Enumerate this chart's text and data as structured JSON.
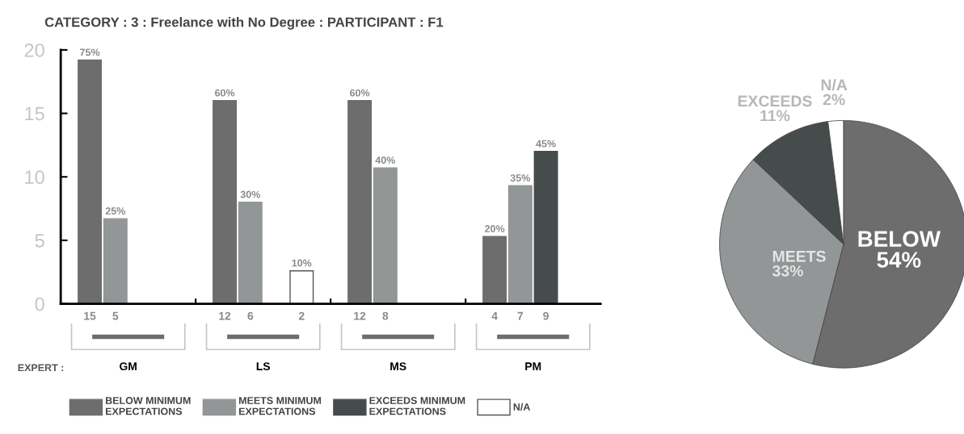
{
  "chart_data": [
    {
      "type": "bar",
      "title": "CATEGORY : 3 : Freelance with No Degree : PARTICIPANT : F1",
      "xlabel": "EXPERT :",
      "categories": [
        "GM",
        "LS",
        "MS",
        "PM"
      ],
      "series": [
        {
          "name": "BELOW MINIMUM\nEXPECTATIONS",
          "color": "#6d6d6d",
          "values": [
            19.2,
            16,
            16,
            5.3
          ]
        },
        {
          "name": "MEETS MINIMUM\nEXPECTATIONS",
          "color": "#929696",
          "values": [
            6.7,
            8,
            10.7,
            9.3
          ]
        },
        {
          "name": "EXCEEDS MINIMUM\nEXPECTATIONS",
          "color": "#464b4b",
          "values": [
            null,
            null,
            null,
            12
          ]
        },
        {
          "name": "N/A",
          "color": "#ffffff",
          "values": [
            null,
            2.6,
            null,
            null
          ]
        }
      ],
      "annotations": [
        "75%",
        "60%",
        "60%",
        "20%",
        "25%",
        "30%",
        "40%",
        "35%",
        "45%",
        "10%",
        "15",
        "12",
        "12",
        "4",
        "5",
        "6",
        "8",
        "7",
        "9",
        "2"
      ],
      "ylim": [
        0,
        20
      ],
      "yticks": [
        0,
        5,
        10,
        15,
        20
      ],
      "grid": false,
      "legend": "bottom"
    },
    {
      "type": "pie",
      "categories": [
        "BELOW",
        "MEETS",
        "EXCEEDS",
        "N/A"
      ],
      "values": [
        54,
        33,
        11,
        2
      ],
      "colors": [
        "#6d6d6d",
        "#929696",
        "#464b4b",
        "#ffffff"
      ],
      "value_labels": [
        "54%",
        "33%",
        "11%",
        "2%"
      ]
    }
  ]
}
